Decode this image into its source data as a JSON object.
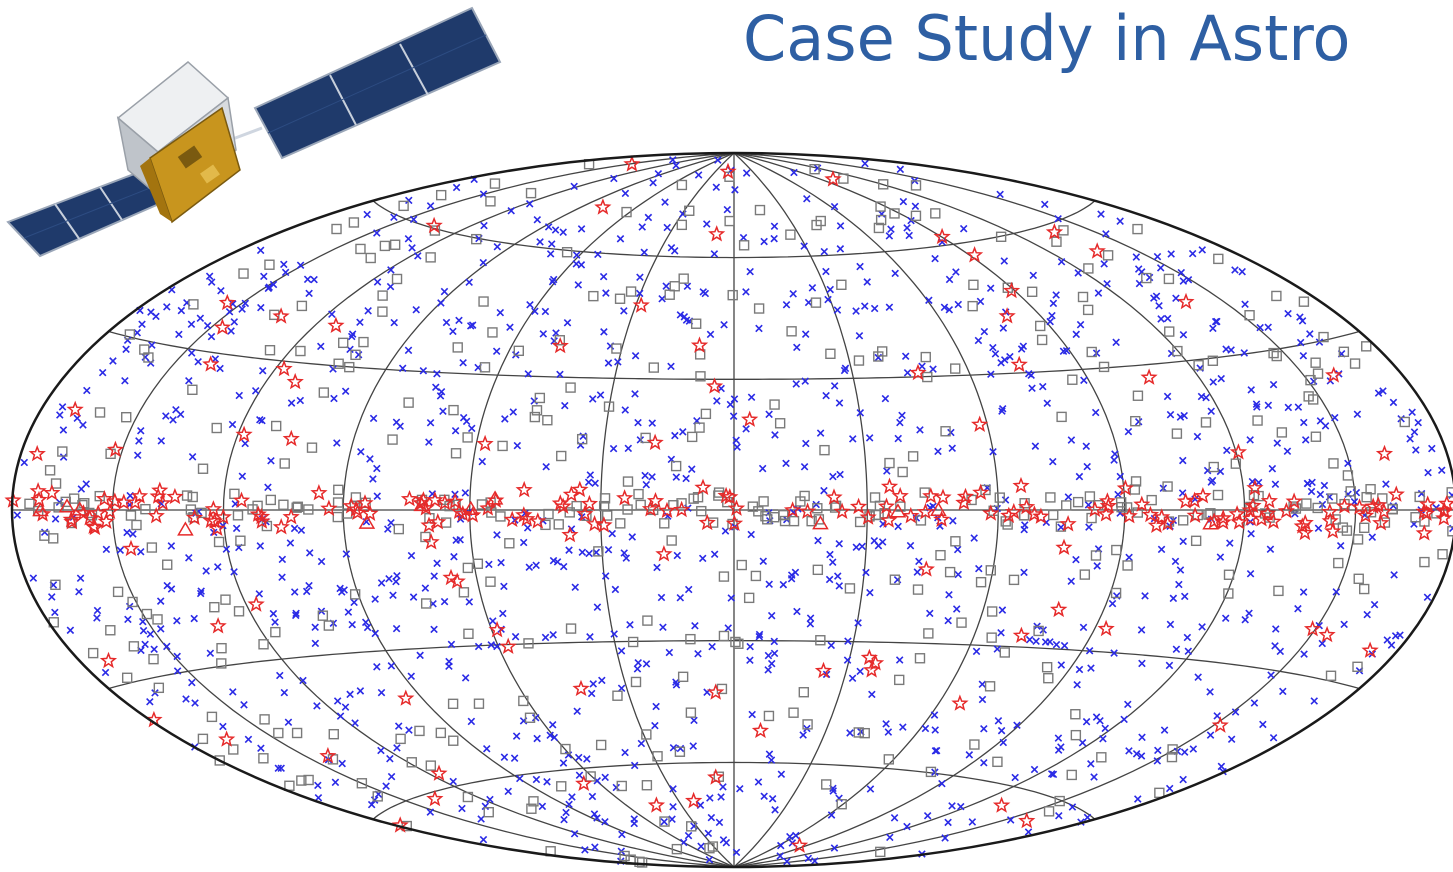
{
  "slide": {
    "title": "Case Study in Astro",
    "title_color": "#2e5fa3"
  },
  "satellite": {
    "icon": "satellite-icon"
  },
  "sky_map": {
    "projection": "Hammer-Aitoff all-sky (galactic coordinates)",
    "grid": true,
    "marker_legend": [
      {
        "marker": "cross",
        "color": "#2a2ae6"
      },
      {
        "marker": "square",
        "color": "#7a7a7a"
      },
      {
        "marker": "star",
        "color": "#e62a2a"
      },
      {
        "marker": "triangle",
        "color": "#e62a2a"
      }
    ],
    "colors": {
      "frame": "#1a1a1a",
      "grid": "#444444",
      "cross": "#2a2ae6",
      "square": "#7a7a7a",
      "star": "#e62a2a"
    }
  }
}
